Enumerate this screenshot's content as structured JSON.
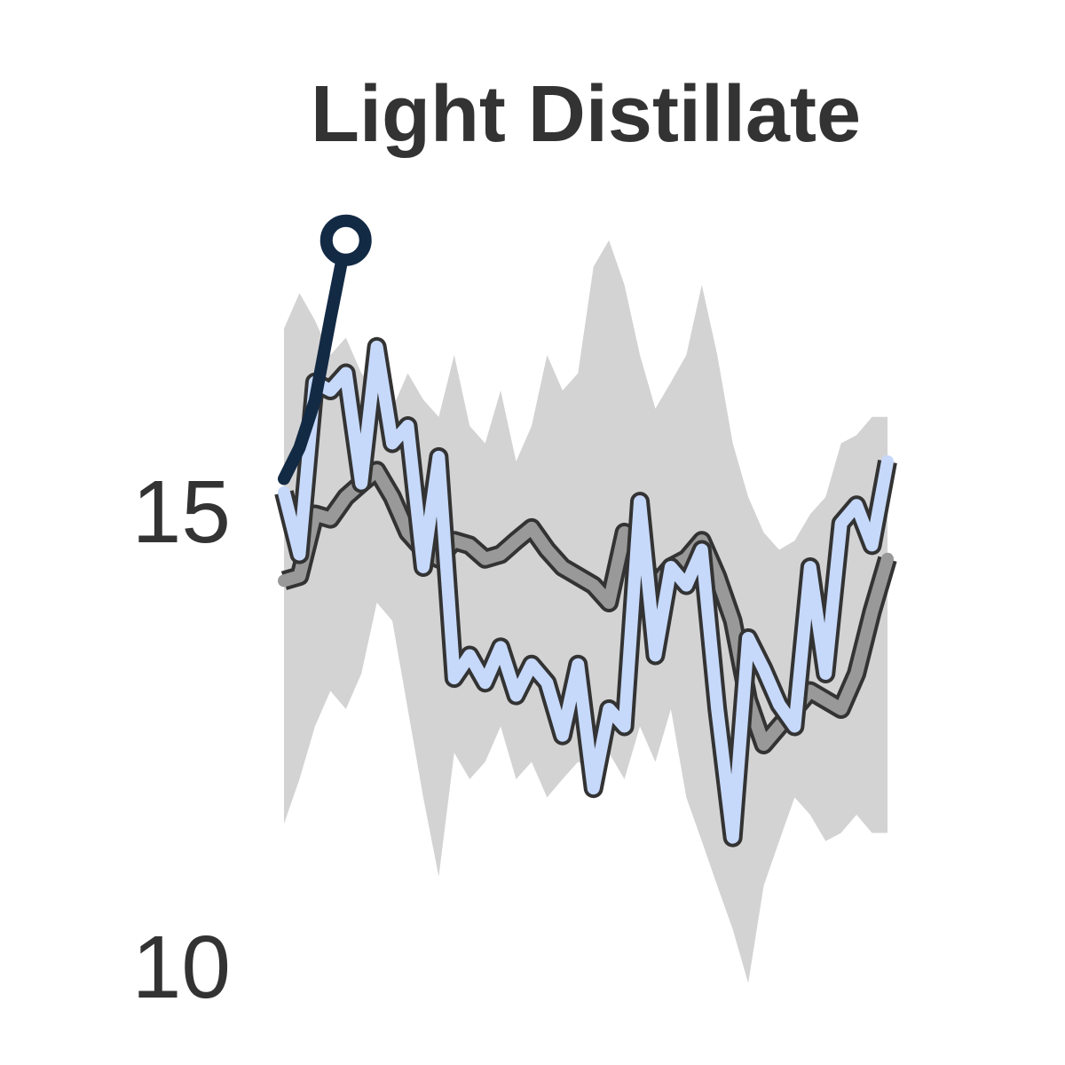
{
  "chart_data": {
    "type": "line",
    "title": "Light Distillate",
    "categories": [
      null,
      null,
      null,
      null,
      null,
      null,
      null,
      null,
      null,
      null,
      null,
      null,
      null,
      null,
      null,
      null,
      null,
      null,
      null,
      null,
      null,
      null,
      null,
      null,
      null,
      null,
      null,
      null,
      null,
      null,
      null,
      null,
      null,
      null,
      null,
      null,
      null,
      null,
      null,
      null
    ],
    "ylim": [
      9,
      20.7
    ],
    "yticks": [
      10,
      15
    ],
    "band": {
      "color": "#d3d3d3",
      "upper": [
        17.09,
        17.48,
        17.18,
        16.8,
        16.99,
        16.6,
        16.41,
        16.21,
        16.6,
        16.31,
        16.12,
        16.8,
        16.02,
        15.83,
        16.41,
        15.63,
        16.02,
        16.8,
        16.41,
        16.6,
        17.77,
        18.06,
        17.57,
        16.8,
        16.21,
        16.5,
        16.8,
        17.57,
        16.8,
        15.83,
        15.24,
        14.85,
        14.66,
        14.76,
        15.05,
        15.24,
        15.83,
        15.92,
        16.12,
        16.12
      ],
      "lower": [
        11.65,
        12.14,
        12.72,
        13.11,
        12.91,
        13.3,
        14.08,
        13.88,
        12.91,
        11.94,
        11.07,
        12.43,
        12.14,
        12.33,
        12.72,
        12.14,
        12.33,
        11.94,
        12.14,
        12.33,
        12.23,
        12.43,
        12.14,
        12.72,
        12.33,
        12.91,
        11.94,
        11.46,
        10.97,
        10.49,
        9.9,
        10.97,
        11.46,
        11.94,
        11.75,
        11.46,
        11.55,
        11.75,
        11.55,
        11.55
      ]
    },
    "series": [
      {
        "color": "#999999",
        "values": [
          14.32,
          14.37,
          15.05,
          15.0,
          15.24,
          15.39,
          15.53,
          15.24,
          14.85,
          14.66,
          14.56,
          14.76,
          14.71,
          14.56,
          14.61,
          14.76,
          14.9,
          14.66,
          14.47,
          14.37,
          14.27,
          14.08,
          14.85,
          14.56,
          14.27,
          14.47,
          14.56,
          14.76,
          14.37,
          13.88,
          13.01,
          12.52,
          12.72,
          12.91,
          13.11,
          13.01,
          12.91,
          13.3,
          13.98,
          14.56
        ]
      },
      {
        "color": "#c6d9fb",
        "values": [
          15.29,
          14.61,
          16.5,
          16.41,
          16.6,
          15.39,
          16.89,
          15.83,
          16.02,
          14.47,
          15.68,
          13.25,
          13.5,
          13.2,
          13.59,
          13.06,
          13.4,
          13.2,
          12.62,
          13.4,
          12.04,
          12.91,
          12.72,
          15.19,
          13.5,
          14.47,
          14.27,
          14.66,
          12.91,
          11.5,
          13.69,
          13.35,
          12.96,
          12.72,
          14.47,
          13.3,
          14.95,
          15.15,
          14.71,
          15.63
        ]
      },
      {
        "color": "#132a45",
        "values": [
          15.44,
          15.78,
          16.3,
          17.2,
          18.06,
          null,
          null,
          null,
          null,
          null,
          null,
          null,
          null,
          null,
          null,
          null,
          null,
          null,
          null,
          null,
          null,
          null,
          null,
          null,
          null,
          null,
          null,
          null,
          null,
          null,
          null,
          null,
          null,
          null,
          null,
          null,
          null,
          null,
          null,
          null
        ]
      }
    ]
  }
}
